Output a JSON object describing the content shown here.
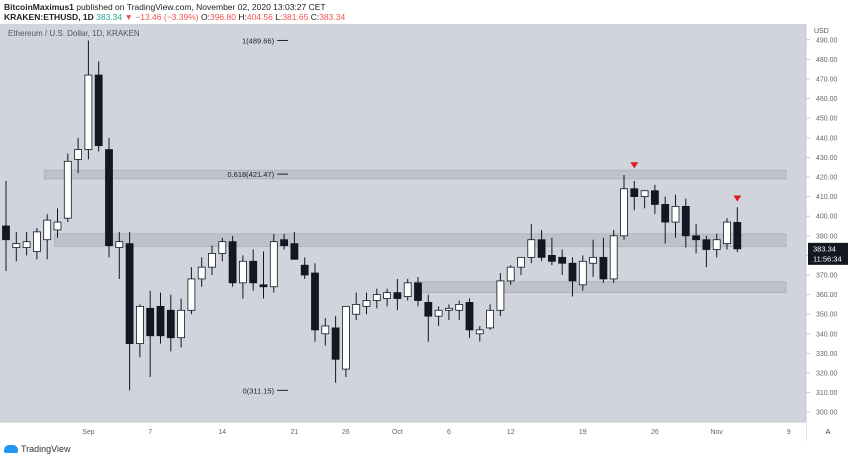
{
  "header": {
    "author": "BitcoinMaximus1",
    "published_text": "published on TradingView.com, November 02, 2020 13:03:27 CET",
    "symbol": "KRAKEN:ETHUSD, 1D",
    "last": "383.34",
    "change": "−13.46 (−3.39%)",
    "o_label": "O:",
    "o": "396.80",
    "h_label": "H:",
    "h": "404.56",
    "l_label": "L:",
    "l": "381.65",
    "c_label": "C:",
    "c": "383.34"
  },
  "footer": {
    "logo_text": "TradingView"
  },
  "colors": {
    "background": "#d1d4dc",
    "candle_up_fill": "#ffffff",
    "candle_down_fill": "#131722",
    "zone": "#bfc2ca",
    "arrow": "#e31b23",
    "price_tag": "#131722"
  },
  "chart_data": {
    "type": "candlestick",
    "title": "Ethereum / U.S. Dollar, 1D, KRAKEN",
    "ylim": [
      295,
      495
    ],
    "y_ticks": [
      300,
      310,
      320,
      330,
      340,
      350,
      360,
      370,
      380,
      390,
      400,
      410,
      420,
      430,
      440,
      450,
      460,
      470,
      480,
      490
    ],
    "y_unit": "USD",
    "x_tick_labels": [
      {
        "label": "Sep",
        "index": 8
      },
      {
        "label": "7",
        "index": 14
      },
      {
        "label": "14",
        "index": 21
      },
      {
        "label": "21",
        "index": 28
      },
      {
        "label": "26",
        "index": 33
      },
      {
        "label": "Oct",
        "index": 38
      },
      {
        "label": "6",
        "index": 43
      },
      {
        "label": "12",
        "index": 49
      },
      {
        "label": "19",
        "index": 56
      },
      {
        "label": "26",
        "index": 63
      },
      {
        "label": "Nov",
        "index": 69
      },
      {
        "label": "9",
        "index": 76
      }
    ],
    "candles": [
      {
        "o": 395,
        "h": 418,
        "l": 372,
        "c": 388
      },
      {
        "o": 384,
        "h": 392,
        "l": 377,
        "c": 386
      },
      {
        "o": 384,
        "h": 392,
        "l": 380,
        "c": 387
      },
      {
        "o": 382,
        "h": 394,
        "l": 378,
        "c": 392
      },
      {
        "o": 388,
        "h": 401,
        "l": 378,
        "c": 398
      },
      {
        "o": 393,
        "h": 404,
        "l": 389,
        "c": 397
      },
      {
        "o": 399,
        "h": 432,
        "l": 397,
        "c": 428
      },
      {
        "o": 429,
        "h": 440,
        "l": 422,
        "c": 434
      },
      {
        "o": 434,
        "h": 489.66,
        "l": 429,
        "c": 472
      },
      {
        "o": 472,
        "h": 479,
        "l": 433,
        "c": 436
      },
      {
        "o": 434,
        "h": 440,
        "l": 379,
        "c": 385
      },
      {
        "o": 384,
        "h": 392,
        "l": 368,
        "c": 387
      },
      {
        "o": 386,
        "h": 392,
        "l": 311.15,
        "c": 335
      },
      {
        "o": 335,
        "h": 355,
        "l": 328,
        "c": 354
      },
      {
        "o": 353,
        "h": 362,
        "l": 318,
        "c": 339
      },
      {
        "o": 354,
        "h": 361,
        "l": 335,
        "c": 339
      },
      {
        "o": 352,
        "h": 360,
        "l": 331,
        "c": 338
      },
      {
        "o": 338,
        "h": 358,
        "l": 333,
        "c": 352
      },
      {
        "o": 352,
        "h": 374,
        "l": 350,
        "c": 368
      },
      {
        "o": 368,
        "h": 379,
        "l": 364,
        "c": 374
      },
      {
        "o": 374,
        "h": 385,
        "l": 370,
        "c": 381
      },
      {
        "o": 381,
        "h": 389,
        "l": 377,
        "c": 387
      },
      {
        "o": 387,
        "h": 390,
        "l": 364,
        "c": 366
      },
      {
        "o": 366,
        "h": 380,
        "l": 358,
        "c": 377
      },
      {
        "o": 377,
        "h": 383,
        "l": 362,
        "c": 366
      },
      {
        "o": 365,
        "h": 382,
        "l": 358,
        "c": 364
      },
      {
        "o": 364,
        "h": 391,
        "l": 361,
        "c": 387
      },
      {
        "o": 388,
        "h": 391,
        "l": 383,
        "c": 385
      },
      {
        "o": 386,
        "h": 392,
        "l": 380,
        "c": 378
      },
      {
        "o": 375,
        "h": 379,
        "l": 368,
        "c": 370
      },
      {
        "o": 371,
        "h": 376,
        "l": 336,
        "c": 342
      },
      {
        "o": 340,
        "h": 348,
        "l": 334,
        "c": 344
      },
      {
        "o": 343,
        "h": 349,
        "l": 315,
        "c": 327
      },
      {
        "o": 322,
        "h": 354,
        "l": 318,
        "c": 354
      },
      {
        "o": 350,
        "h": 361,
        "l": 347,
        "c": 355
      },
      {
        "o": 354,
        "h": 361,
        "l": 350,
        "c": 357
      },
      {
        "o": 357,
        "h": 363,
        "l": 353,
        "c": 360
      },
      {
        "o": 358,
        "h": 363,
        "l": 354,
        "c": 361
      },
      {
        "o": 361,
        "h": 368,
        "l": 352,
        "c": 358
      },
      {
        "o": 359,
        "h": 368,
        "l": 357,
        "c": 366
      },
      {
        "o": 366,
        "h": 369,
        "l": 354,
        "c": 357
      },
      {
        "o": 356,
        "h": 360,
        "l": 336,
        "c": 349
      },
      {
        "o": 349,
        "h": 354,
        "l": 344,
        "c": 352
      },
      {
        "o": 352,
        "h": 355,
        "l": 347,
        "c": 353
      },
      {
        "o": 352,
        "h": 357,
        "l": 347,
        "c": 355
      },
      {
        "o": 356,
        "h": 358,
        "l": 338,
        "c": 342
      },
      {
        "o": 340,
        "h": 344,
        "l": 336,
        "c": 342
      },
      {
        "o": 343,
        "h": 355,
        "l": 342,
        "c": 352
      },
      {
        "o": 352,
        "h": 371,
        "l": 349,
        "c": 367
      },
      {
        "o": 367,
        "h": 375,
        "l": 365,
        "c": 374
      },
      {
        "o": 374,
        "h": 379,
        "l": 370,
        "c": 379
      },
      {
        "o": 379,
        "h": 396,
        "l": 376,
        "c": 388
      },
      {
        "o": 388,
        "h": 393,
        "l": 377,
        "c": 379
      },
      {
        "o": 380,
        "h": 389,
        "l": 375,
        "c": 377
      },
      {
        "o": 379,
        "h": 383,
        "l": 370,
        "c": 376
      },
      {
        "o": 376,
        "h": 379,
        "l": 359,
        "c": 367
      },
      {
        "o": 365,
        "h": 380,
        "l": 362,
        "c": 377
      },
      {
        "o": 376,
        "h": 388,
        "l": 369,
        "c": 379
      },
      {
        "o": 379,
        "h": 389,
        "l": 366,
        "c": 368
      },
      {
        "o": 368,
        "h": 393,
        "l": 366,
        "c": 390
      },
      {
        "o": 390,
        "h": 421,
        "l": 388,
        "c": 414
      },
      {
        "o": 414,
        "h": 418,
        "l": 403,
        "c": 410
      },
      {
        "o": 410,
        "h": 413,
        "l": 404,
        "c": 413
      },
      {
        "o": 413,
        "h": 416,
        "l": 401,
        "c": 406
      },
      {
        "o": 406,
        "h": 410,
        "l": 386,
        "c": 397
      },
      {
        "o": 397,
        "h": 411,
        "l": 389,
        "c": 405
      },
      {
        "o": 405,
        "h": 409,
        "l": 384,
        "c": 390
      },
      {
        "o": 390,
        "h": 396,
        "l": 381,
        "c": 388
      },
      {
        "o": 388,
        "h": 390,
        "l": 374,
        "c": 383
      },
      {
        "o": 383,
        "h": 391,
        "l": 379,
        "c": 388
      },
      {
        "o": 386,
        "h": 399,
        "l": 383,
        "c": 397
      },
      {
        "o": 396.8,
        "h": 404.56,
        "l": 381.65,
        "c": 383.34
      }
    ],
    "zones": [
      {
        "from": 419,
        "to": 423.5,
        "start_index": 4,
        "end_index": null
      },
      {
        "from": 384.5,
        "to": 391,
        "start_index": 5,
        "end_index": null
      },
      {
        "from": 361,
        "to": 366.5,
        "start_index": 40,
        "end_index": null
      }
    ],
    "fib_levels": [
      {
        "label": "1(489.66)",
        "value": 489.66,
        "index": 27
      },
      {
        "label": "0.618(421.47)",
        "value": 421.47,
        "index": 27
      },
      {
        "label": "0(311.15)",
        "value": 311.15,
        "index": 27
      }
    ],
    "markers": [
      {
        "index": 61,
        "value": 426
      },
      {
        "index": 71,
        "value": 409
      }
    ],
    "price_tag": {
      "value": 383.34,
      "label": "383.34",
      "countdown": "11:56:34"
    },
    "scale_button": "A"
  }
}
